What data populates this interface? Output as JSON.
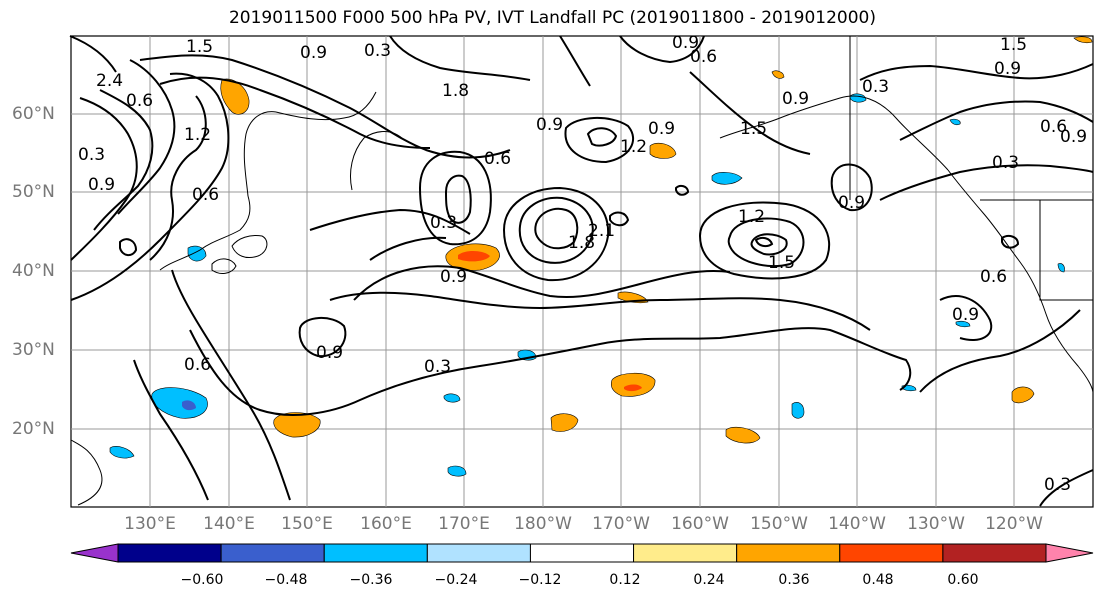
{
  "title": "2019011500 F000 500 hPa PV, IVT Landfall PC (2019011800 - 2019012000)",
  "lat_labels": [
    "60°N",
    "50°N",
    "40°N",
    "30°N",
    "20°N"
  ],
  "lon_labels": [
    "130°E",
    "140°E",
    "150°E",
    "160°E",
    "170°E",
    "180°W",
    "170°W",
    "160°W",
    "150°W",
    "140°W",
    "130°W",
    "120°W"
  ],
  "colorbar": {
    "colors": [
      "#9932cc",
      "#00008b",
      "#3a5fcd",
      "#00bfff",
      "#b0e2ff",
      "#ffffff",
      "#ffec8b",
      "#ffa500",
      "#ff4500",
      "#b22222",
      "#ff83ac"
    ],
    "ticks": [
      "−0.60",
      "−0.48",
      "−0.36",
      "−0.24",
      "−0.12",
      "0.12",
      "0.24",
      "0.36",
      "0.48",
      "0.60"
    ]
  },
  "contour_labels": [
    "1.5",
    "0.9",
    "0.6",
    "2.4",
    "0.9",
    "0.3",
    "1.2",
    "0.6",
    "0.6",
    "0.9",
    "1.8",
    "0.6",
    "0.9",
    "1.2",
    "1.5",
    "1.8",
    "2.1",
    "0.9",
    "0.3",
    "0.9",
    "1.2",
    "1.5",
    "0.9",
    "0.3",
    "0.6",
    "0.3",
    "0.9",
    "0.6",
    "0.9",
    "0.3",
    "0.9",
    "1.5",
    "0.9",
    "0.6",
    "0.9",
    "0.3",
    "0.3"
  ],
  "shaded_features": [
    {
      "color": "#ff4500",
      "level": 0.36
    },
    {
      "color": "#ffa500",
      "level": 0.24
    },
    {
      "color": "#00bfff",
      "level": -0.24
    },
    {
      "color": "#3a5fcd",
      "level": -0.36
    }
  ]
}
